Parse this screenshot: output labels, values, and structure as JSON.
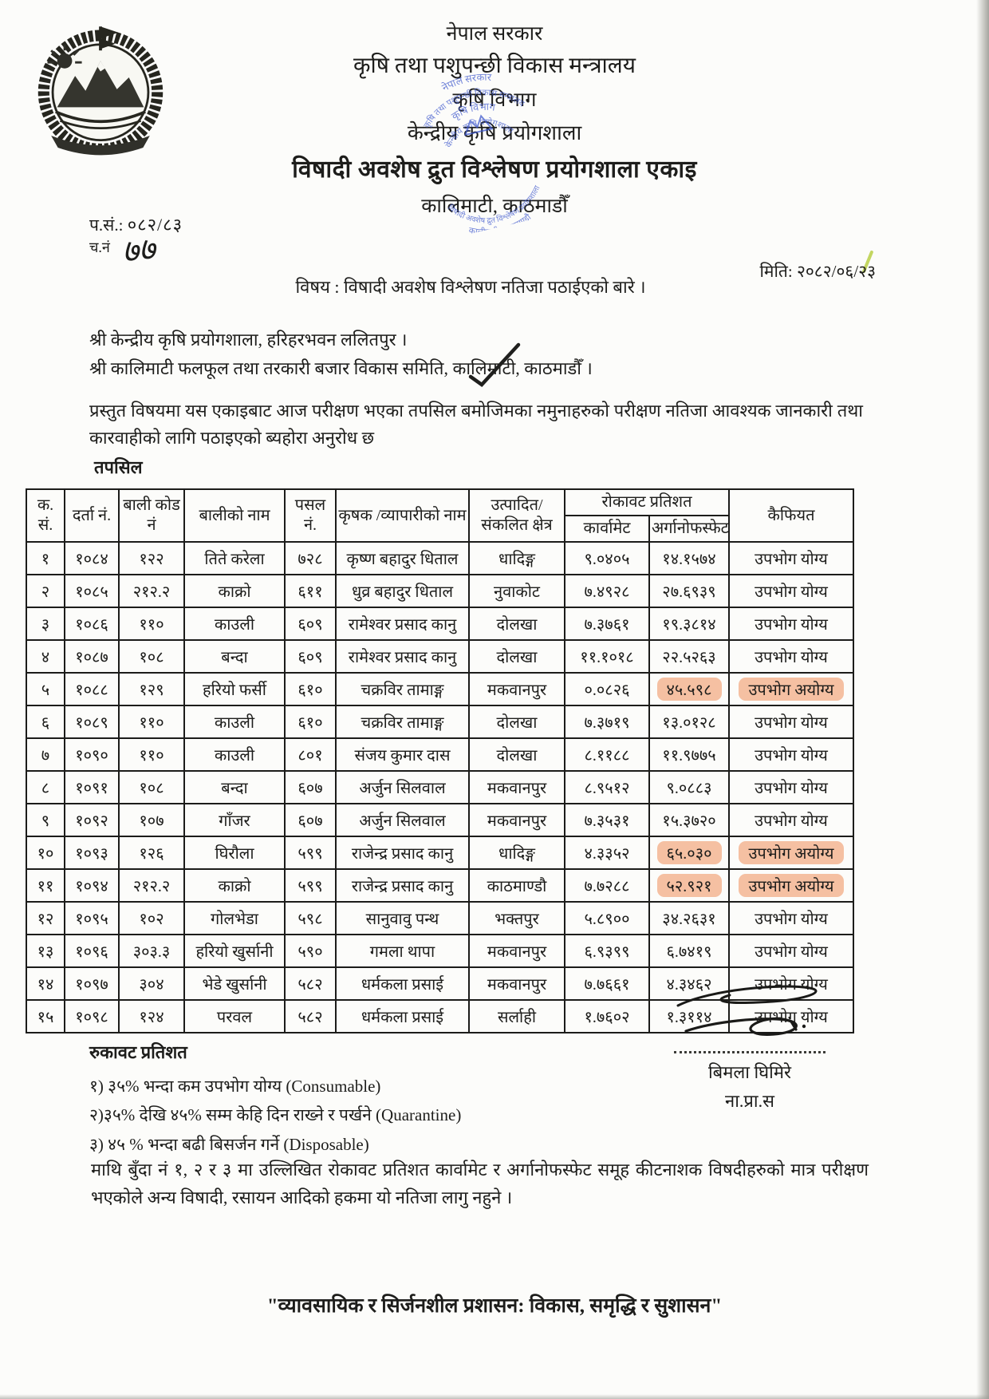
{
  "header": {
    "government": "नेपाल सरकार",
    "ministry": "कृषि तथा पशुपन्छी विकास मन्त्रालय",
    "department": "कृषि विभाग",
    "laboratory": "केन्द्रीय कृषि प्रयोगशाला",
    "unit": "विषादी अवशेष द्रुत विश्लेषण प्रयोगशाला एकाइ",
    "location": "कालिमाटी, काठमाडौँ"
  },
  "stamp": {
    "color": "#3b55cc",
    "line1": "नेपाल सरकार",
    "line2": "कृषि तथा पशुपन्छी विकास मन्त्रालय",
    "line3": "कृषि विभाग",
    "line4": "केन्द्रीय कृषि प्रयोगशाला",
    "line5": "विषादी अवशेष द्रुत विश्लेषण प्रयोगशाला",
    "line6": "कालीमाटी, काठमाण्डौ"
  },
  "meta": {
    "ref_label": "प.सं.:",
    "ref_value": "०८२/८३",
    "dispatch_label": "च.नं",
    "dispatch_value": "७७",
    "date_text": "मिति: २०८२/०६/२३"
  },
  "subject": "विषय : विषादी अवशेष विश्लेषण नतिजा पठाईएको बारे ।",
  "recipients": {
    "line1": "श्री केन्द्रीय कृषि प्रयोगशाला, हरिहरभवन ललितपुर ।",
    "line2": "श्री कालिमाटी फलफूल तथा तरकारी बजार विकास समिति, कालिमाटी, काठमाडौँ ।"
  },
  "body_paragraph": "प्रस्तुत विषयमा यस एकाइबाट आज परीक्षण भएका तपसिल बमोजिमका नमुनाहरुको परीक्षण नतिजा आवश्यक जानकारी तथा कारवाहीको लागि पठाइएको ब्यहोरा अनुरोध छ",
  "tapasil_label": "तपसिल",
  "table": {
    "highlight_color": "#ef8e5a",
    "headers": {
      "sn": "क. सं.",
      "reg": "दर्ता नं.",
      "code": "बाली कोड नं",
      "crop": "बालीको नाम",
      "shop": "पसल नं.",
      "name": "कृषक /व्यापारीको नाम",
      "area": "उत्पादित/संकलित क्षेत्र",
      "rokawat": "रोकावट प्रतिशत",
      "carbamate": "कार्वामेट",
      "organophosphate": "अर्गानोफस्फेट",
      "remark": "कैफियत"
    },
    "rows": [
      {
        "sn": "१",
        "reg": "१०८४",
        "code": "१२२",
        "crop": "तिते करेला",
        "shop": "७२८",
        "name": "कृष्ण बहादुर धिताल",
        "area": "धादिङ्ग",
        "carbamate": "९.०४०५",
        "organophosphate": "१४.१५७४",
        "remark": "उपभोग योग्य",
        "highlight": false
      },
      {
        "sn": "२",
        "reg": "१०८५",
        "code": "२१२.२",
        "crop": "काक्रो",
        "shop": "६११",
        "name": "धुव्र बहादुर धिताल",
        "area": "नुवाकोट",
        "carbamate": "७.४९२८",
        "organophosphate": "२७.६९३९",
        "remark": "उपभोग योग्य",
        "highlight": false
      },
      {
        "sn": "३",
        "reg": "१०८६",
        "code": "११०",
        "crop": "काउली",
        "shop": "६०९",
        "name": "रामेश्वर प्रसाद कानु",
        "area": "दोलखा",
        "carbamate": "७.३७६१",
        "organophosphate": "१९.३८१४",
        "remark": "उपभोग योग्य",
        "highlight": false
      },
      {
        "sn": "४",
        "reg": "१०८७",
        "code": "१०८",
        "crop": "बन्दा",
        "shop": "६०९",
        "name": "रामेश्वर प्रसाद कानु",
        "area": "दोलखा",
        "carbamate": "११.१०१८",
        "organophosphate": "२२.५२६३",
        "remark": "उपभोग योग्य",
        "highlight": false
      },
      {
        "sn": "५",
        "reg": "१०८८",
        "code": "१२९",
        "crop": "हरियो फर्सी",
        "shop": "६१०",
        "name": "चक्रविर तामाङ्ग",
        "area": "मकवानपुर",
        "carbamate": "०.०८२६",
        "organophosphate": "४५.५९८",
        "remark": "उपभोग अयोग्य",
        "highlight": true
      },
      {
        "sn": "६",
        "reg": "१०८९",
        "code": "११०",
        "crop": "काउली",
        "shop": "६१०",
        "name": "चक्रविर तामाङ्ग",
        "area": "दोलखा",
        "carbamate": "७.३७१९",
        "organophosphate": "१३.०१२८",
        "remark": "उपभोग योग्य",
        "highlight": false
      },
      {
        "sn": "७",
        "reg": "१०९०",
        "code": "११०",
        "crop": "काउली",
        "shop": "८०१",
        "name": "संजय कुमार दास",
        "area": "दोलखा",
        "carbamate": "८.११८८",
        "organophosphate": "११.९७७५",
        "remark": "उपभोग योग्य",
        "highlight": false
      },
      {
        "sn": "८",
        "reg": "१०९१",
        "code": "१०८",
        "crop": "बन्दा",
        "shop": "६०७",
        "name": "अर्जुन सिलवाल",
        "area": "मकवानपुर",
        "carbamate": "८.९५१२",
        "organophosphate": "९.०८८३",
        "remark": "उपभोग योग्य",
        "highlight": false
      },
      {
        "sn": "९",
        "reg": "१०९२",
        "code": "१०७",
        "crop": "गाँजर",
        "shop": "६०७",
        "name": "अर्जुन सिलवाल",
        "area": "मकवानपुर",
        "carbamate": "७.३५३१",
        "organophosphate": "१५.३७२०",
        "remark": "उपभोग योग्य",
        "highlight": false
      },
      {
        "sn": "१०",
        "reg": "१०९३",
        "code": "१२६",
        "crop": "घिरौला",
        "shop": "५९९",
        "name": "राजेन्द्र प्रसाद कानु",
        "area": "धादिङ्ग",
        "carbamate": "४.३३५२",
        "organophosphate": "६५.०३०",
        "remark": "उपभोग अयोग्य",
        "highlight": true
      },
      {
        "sn": "११",
        "reg": "१०९४",
        "code": "२१२.२",
        "crop": "काक्रो",
        "shop": "५९९",
        "name": "राजेन्द्र प्रसाद कानु",
        "area": "काठमाण्डौ",
        "carbamate": "७.७२८८",
        "organophosphate": "५२.९२१",
        "remark": "उपभोग अयोग्य",
        "highlight": true
      },
      {
        "sn": "१२",
        "reg": "१०९५",
        "code": "१०२",
        "crop": "गोलभेडा",
        "shop": "५९८",
        "name": "सानुवावु पन्थ",
        "area": "भक्तपुर",
        "carbamate": "५.८९००",
        "organophosphate": "३४.२६३१",
        "remark": "उपभोग योग्य",
        "highlight": false
      },
      {
        "sn": "१३",
        "reg": "१०९६",
        "code": "३०३.३",
        "crop": "हरियो खुर्सानी",
        "shop": "५९०",
        "name": "गमला थापा",
        "area": "मकवानपुर",
        "carbamate": "६.९३९९",
        "organophosphate": "६.७४१९",
        "remark": "उपभोग योग्य",
        "highlight": false
      },
      {
        "sn": "१४",
        "reg": "१०९७",
        "code": "३०४",
        "crop": "भेडे खुर्सानी",
        "shop": "५८२",
        "name": "धर्मकला प्रसाई",
        "area": "मकवानपुर",
        "carbamate": "७.७६६१",
        "organophosphate": "४.३४६२",
        "remark": "उपभोग योग्य",
        "highlight": false
      },
      {
        "sn": "१५",
        "reg": "१०९८",
        "code": "१२४",
        "crop": "परवल",
        "shop": "५८२",
        "name": "धर्मकला प्रसाई",
        "area": "सर्लाही",
        "carbamate": "१.७६०२",
        "organophosphate": "१.३११४",
        "remark": "उपभोग योग्य",
        "highlight": false
      }
    ]
  },
  "notes": {
    "title": "रुकावट प्रतिशत",
    "items": [
      {
        "text": "१) ३५% भन्दा कम उपभोग योग्य (Consumable)"
      },
      {
        "text": "२)३५% देखि ४५%  सम्म केहि दिन राख्ने र पर्खने (Quarantine)"
      },
      {
        "text": "३) ४५ % भन्दा बढी बिसर्जन गर्ने (Disposable)"
      }
    ]
  },
  "signature": {
    "name": "बिमला घिमिरे",
    "title": "ना.प्रा.स"
  },
  "closing_paragraph": "माथि बुँदा नं १, २ र ३ मा उल्लिखित रोकावट प्रतिशत कार्वामेट र अर्गानोफस्फेट समूह कीटनाशक विषदीहरुको मात्र परीक्षण भएकोले अन्य विषादी, रसायन आदिको हकमा यो नतिजा लागु नहुने ।",
  "footer_quote": "\"व्यावसायिक र सिर्जनशील प्रशासन: विकास, समृद्धि र सुशासन\""
}
